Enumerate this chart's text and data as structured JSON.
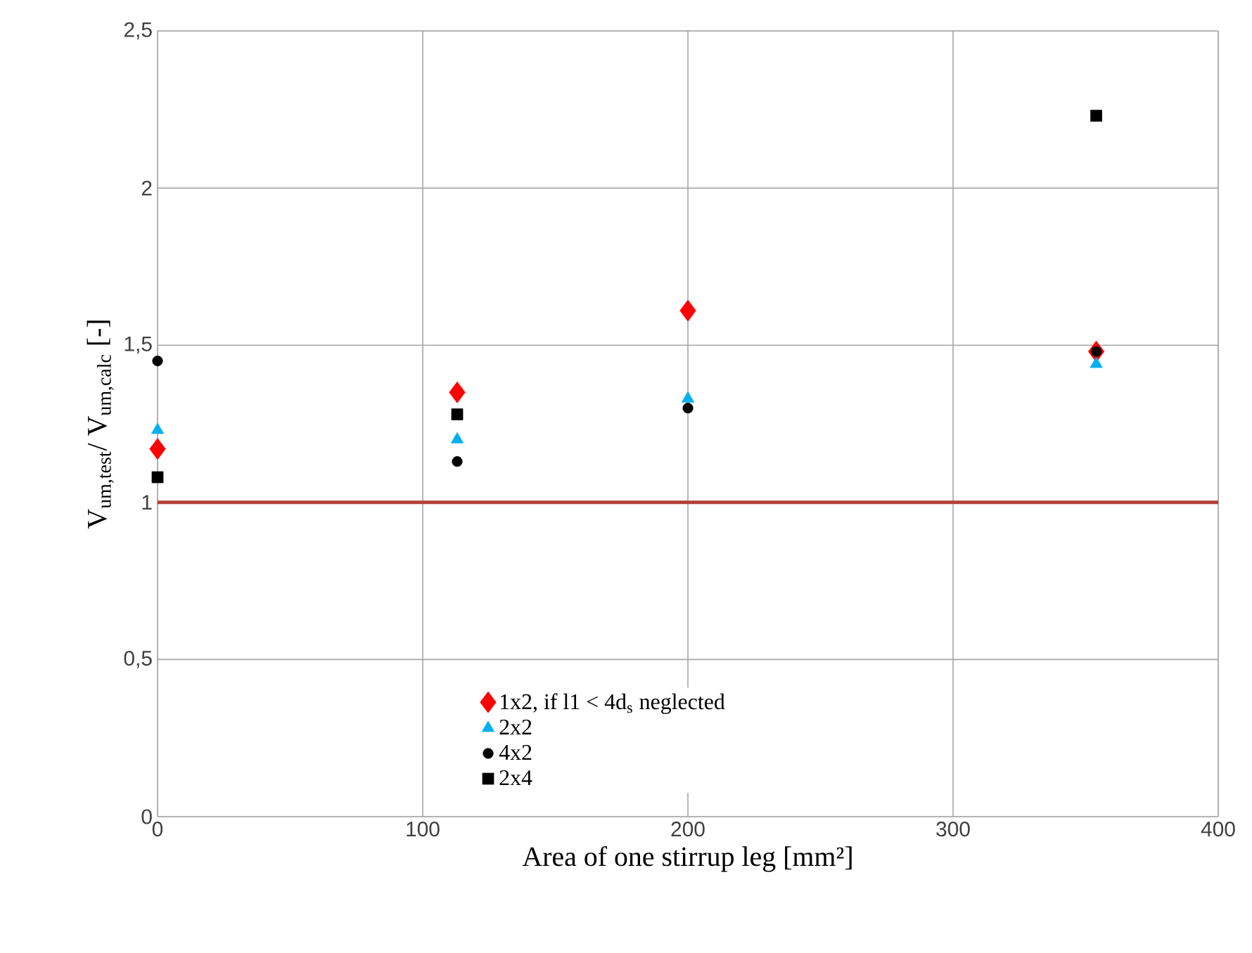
{
  "chart_data": {
    "type": "scatter",
    "xlabel": "Area of one stirrup leg [mm²]",
    "ylabel": "V$_{um,test}$/ V$_{um,calc}$ [-]",
    "xlim": [
      0,
      400
    ],
    "xticks": [
      0,
      100,
      200,
      300,
      400
    ],
    "ylim": [
      0,
      2.5
    ],
    "yticks": [
      0,
      {
        "value": 0.5,
        "label": "0,5"
      },
      1,
      {
        "value": 1.5,
        "label": "1,5"
      },
      2,
      {
        "value": 2.5,
        "label": "2,5"
      }
    ],
    "grid": true,
    "legend": "bottom left",
    "ref_lines": [
      {
        "axis": "y",
        "value": 1,
        "color": "#b5403a",
        "line_style": "solid"
      }
    ],
    "series": [
      {
        "name": "1x2, if l1 < 4d$_{s}$ neglected",
        "color": "#ff0000",
        "marker": "diamond",
        "x": [
          0,
          113,
          200,
          354
        ],
        "values": [
          1.17,
          1.35,
          1.61,
          1.48
        ]
      },
      {
        "name": "2x2",
        "color": "#00b0f0",
        "marker": "triangle",
        "x": [
          0,
          113,
          200,
          354
        ],
        "values": [
          1.23,
          1.2,
          1.33,
          1.44
        ]
      },
      {
        "name": "4x2",
        "color": "#000000",
        "marker": "circle",
        "x": [
          0,
          113,
          200,
          354
        ],
        "values": [
          1.45,
          1.13,
          1.3,
          1.48
        ]
      },
      {
        "name": "2x4",
        "color": "#000000",
        "marker": "square",
        "x": [
          0,
          113,
          354
        ],
        "values": [
          1.08,
          1.28,
          2.23
        ]
      }
    ]
  }
}
